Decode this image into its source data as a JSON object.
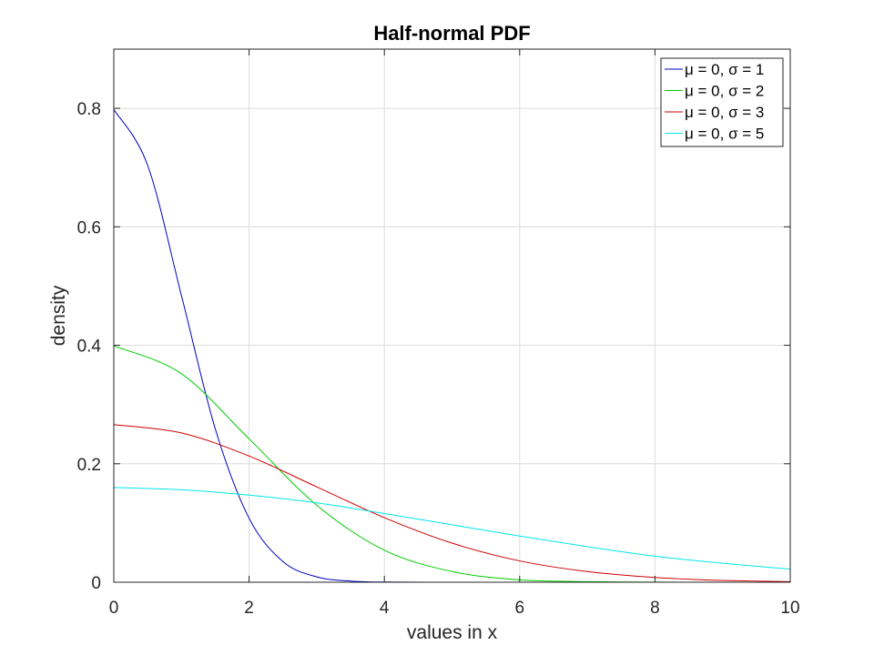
{
  "chart_data": {
    "type": "line",
    "title": "Half-normal PDF",
    "xlabel": "values in x",
    "ylabel": "density",
    "xlim": [
      0,
      10
    ],
    "ylim": [
      0,
      0.9
    ],
    "xticks": [
      0,
      2,
      4,
      6,
      8,
      10
    ],
    "xtick_labels": [
      "0",
      "2",
      "4",
      "6",
      "8",
      "10"
    ],
    "yticks": [
      0,
      0.2,
      0.4,
      0.6,
      0.8
    ],
    "ytick_labels": [
      "0",
      "0.2",
      "0.4",
      "0.6",
      "0.8"
    ],
    "grid": true,
    "legend_position": "top-right",
    "series": [
      {
        "name": "μ = 0, σ = 1",
        "color": "#0000bf",
        "x": [
          0,
          0.5,
          1,
          1.5,
          2,
          2.5,
          3,
          3.5,
          4,
          5,
          6,
          6.85
        ],
        "y": [
          0.798,
          0.704,
          0.484,
          0.259,
          0.108,
          0.035,
          0.009,
          0.002,
          0.0003,
          0.0,
          0.0,
          0.0
        ]
      },
      {
        "name": "μ = 0, σ = 2",
        "color": "#00cc00",
        "x": [
          0,
          1,
          2,
          3,
          4,
          5,
          6,
          7,
          8,
          9,
          10
        ],
        "y": [
          0.399,
          0.352,
          0.242,
          0.13,
          0.054,
          0.018,
          0.004,
          0.001,
          0.0001,
          0.0,
          0.0
        ]
      },
      {
        "name": "μ = 0, σ = 3",
        "color": "#cc0000",
        "x": [
          0,
          1,
          2,
          3,
          4,
          5,
          6,
          7,
          8,
          9,
          10
        ],
        "y": [
          0.266,
          0.252,
          0.213,
          0.161,
          0.109,
          0.066,
          0.036,
          0.018,
          0.008,
          0.003,
          0.001
        ]
      },
      {
        "name": "μ = 0, σ = 5",
        "color": "#00e6e6",
        "x": [
          0,
          1,
          2,
          3,
          4,
          5,
          6,
          7,
          8,
          9,
          10
        ],
        "y": [
          0.16,
          0.156,
          0.147,
          0.134,
          0.116,
          0.097,
          0.078,
          0.06,
          0.044,
          0.032,
          0.022
        ]
      }
    ]
  }
}
